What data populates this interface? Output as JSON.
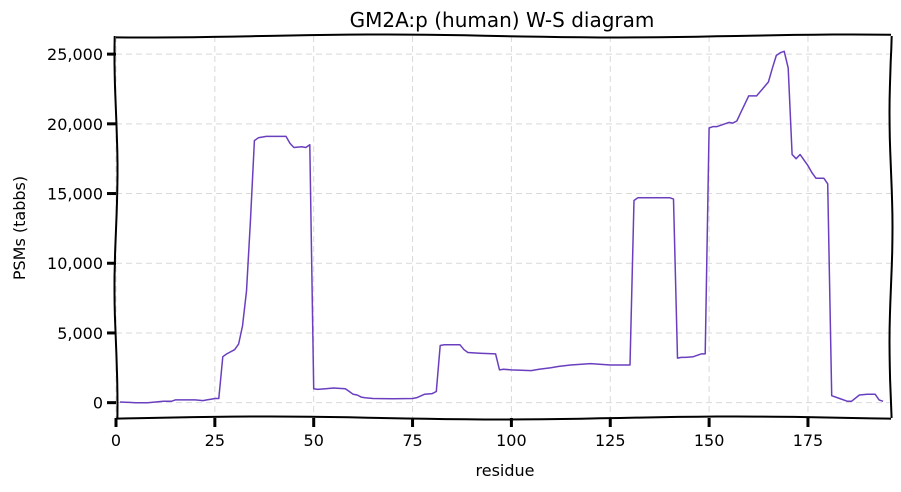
{
  "chart_data": {
    "type": "line",
    "title": "GM2A:p (human) W-S diagram",
    "xlabel": "residue",
    "ylabel": "PSMs (tabbs)",
    "xlim": [
      0,
      196
    ],
    "ylim": [
      -1100,
      26300
    ],
    "grid": true,
    "x_ticks": [
      0,
      25,
      50,
      75,
      100,
      125,
      150,
      175
    ],
    "y_ticks": [
      0,
      5000,
      10000,
      15000,
      20000,
      25000
    ],
    "x_tick_labels": [
      "0",
      "25",
      "50",
      "75",
      "100",
      "125",
      "150",
      "175"
    ],
    "y_tick_labels": [
      "0",
      "5,000",
      "10,000",
      "15,000",
      "20,000",
      "25,000"
    ],
    "series": [
      {
        "color": "#6a3fbf",
        "x": [
          1,
          5,
          8,
          12,
          14,
          15,
          20,
          22,
          23,
          24,
          25,
          26,
          27,
          28,
          30,
          31,
          32,
          33,
          34,
          35,
          36,
          38,
          43,
          44,
          45,
          47,
          48,
          49,
          50,
          51,
          53,
          55,
          58,
          59,
          60,
          61,
          62,
          63,
          65,
          70,
          75,
          76,
          78,
          80,
          81,
          82,
          83,
          87,
          88,
          89,
          92,
          96,
          97,
          98,
          100,
          105,
          107,
          110,
          112,
          115,
          120,
          125,
          130,
          131,
          132,
          133,
          140,
          141,
          142,
          143,
          144,
          146,
          148,
          149,
          150,
          151,
          152,
          153,
          155,
          156,
          157,
          158,
          160,
          162,
          165,
          166,
          167,
          168,
          169,
          170,
          171,
          172,
          173,
          174,
          175,
          176,
          177,
          178,
          179,
          180,
          181,
          183,
          185,
          186,
          188,
          190,
          192,
          193,
          194
        ],
        "y": [
          50,
          0,
          0,
          100,
          100,
          200,
          200,
          150,
          200,
          250,
          300,
          300,
          3300,
          3500,
          3800,
          4200,
          5500,
          8000,
          13000,
          18800,
          19000,
          19100,
          19100,
          18600,
          18300,
          18350,
          18300,
          18500,
          1000,
          950,
          1000,
          1050,
          1000,
          800,
          600,
          550,
          400,
          350,
          300,
          280,
          300,
          350,
          600,
          650,
          800,
          4100,
          4150,
          4150,
          3800,
          3600,
          3550,
          3500,
          2350,
          2400,
          2350,
          2300,
          2400,
          2500,
          2600,
          2700,
          2800,
          2700,
          2700,
          14500,
          14700,
          14700,
          14700,
          14600,
          3200,
          3250,
          3250,
          3300,
          3500,
          3500,
          19700,
          19800,
          19800,
          19900,
          20100,
          20050,
          20200,
          20800,
          22000,
          22000,
          23000,
          24000,
          24900,
          25100,
          25200,
          24000,
          17800,
          17500,
          17800,
          17400,
          17000,
          16500,
          16100,
          16100,
          16100,
          15700,
          500,
          300,
          100,
          100,
          550,
          600,
          600,
          200,
          100
        ]
      }
    ]
  }
}
